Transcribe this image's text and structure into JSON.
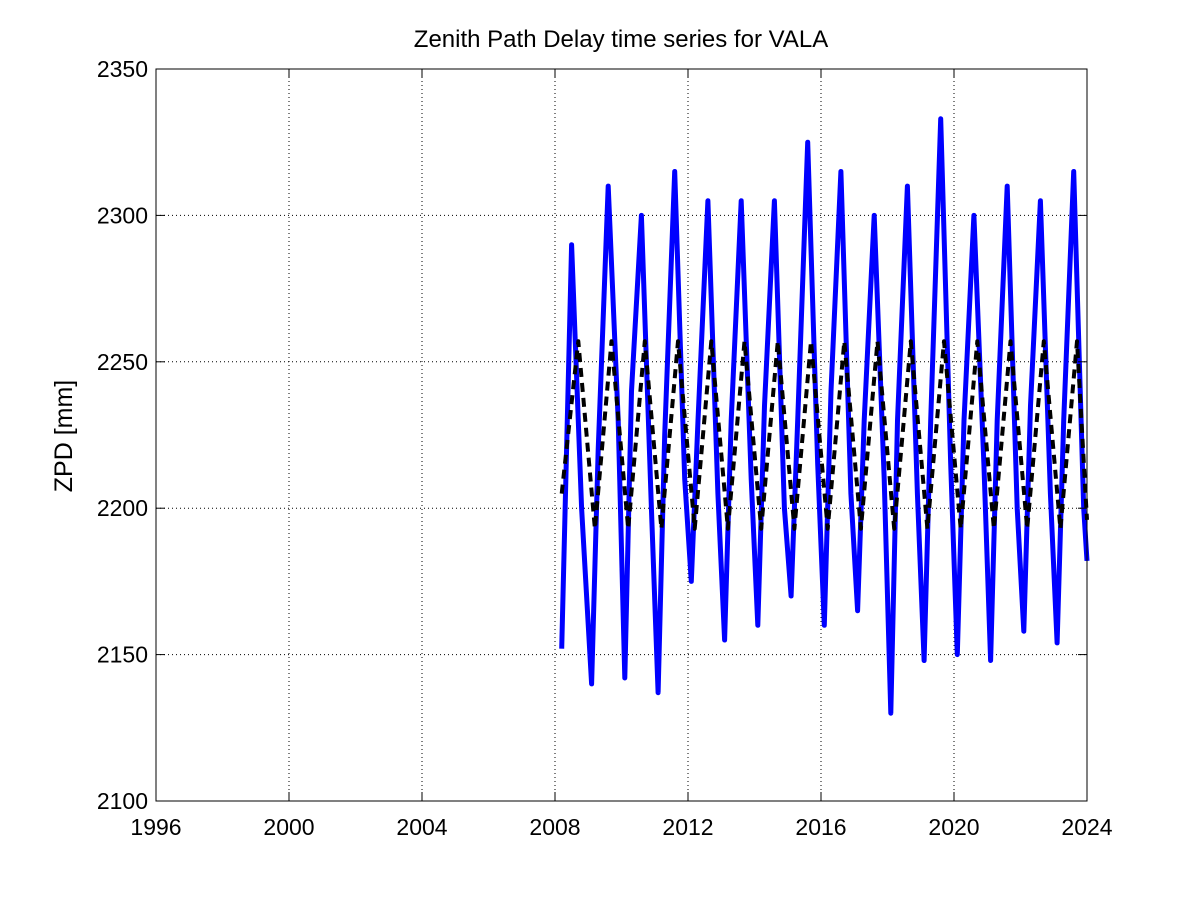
{
  "chart_data": {
    "type": "line",
    "title": "Zenith Path Delay time series for VALA",
    "xlabel": "",
    "ylabel": "ZPD [mm]",
    "xlim": [
      1996,
      2024
    ],
    "ylim": [
      2100,
      2350
    ],
    "x_ticks": [
      1996,
      2000,
      2004,
      2008,
      2012,
      2016,
      2020,
      2024
    ],
    "y_ticks": [
      2100,
      2150,
      2200,
      2250,
      2300,
      2350
    ],
    "grid": true,
    "grid_style": "dotted",
    "colors": {
      "observed": "#0000ff",
      "model": "#000000"
    },
    "series": [
      {
        "style": "solid",
        "color": "#0000ff",
        "x": [
          2008.2,
          2008.5,
          2008.8,
          2009.1,
          2009.3,
          2009.6,
          2009.9,
          2010.1,
          2010.3,
          2010.6,
          2010.9,
          2011.1,
          2011.3,
          2011.6,
          2011.9,
          2012.1,
          2012.3,
          2012.6,
          2012.9,
          2013.1,
          2013.3,
          2013.6,
          2013.9,
          2014.1,
          2014.3,
          2014.6,
          2014.9,
          2015.1,
          2015.3,
          2015.6,
          2015.9,
          2016.1,
          2016.3,
          2016.6,
          2016.9,
          2017.1,
          2017.3,
          2017.6,
          2017.9,
          2018.1,
          2018.3,
          2018.6,
          2018.9,
          2019.1,
          2019.3,
          2019.6,
          2019.9,
          2020.1,
          2020.3,
          2020.6,
          2020.9,
          2021.1,
          2021.3,
          2021.6,
          2021.9,
          2022.1,
          2022.3,
          2022.6,
          2022.9,
          2023.1,
          2023.3,
          2023.6,
          2023.9,
          2024.0
        ],
        "y": [
          2152,
          2290,
          2200,
          2140,
          2220,
          2310,
          2230,
          2142,
          2240,
          2300,
          2200,
          2137,
          2225,
          2315,
          2210,
          2175,
          2230,
          2305,
          2205,
          2155,
          2230,
          2305,
          2210,
          2160,
          2235,
          2305,
          2200,
          2170,
          2230,
          2325,
          2215,
          2160,
          2240,
          2315,
          2205,
          2165,
          2230,
          2300,
          2210,
          2130,
          2230,
          2310,
          2205,
          2148,
          2230,
          2333,
          2215,
          2150,
          2230,
          2300,
          2215,
          2148,
          2230,
          2310,
          2200,
          2158,
          2235,
          2305,
          2205,
          2154,
          2230,
          2315,
          2200,
          2182
        ]
      },
      {
        "style": "dashed",
        "color": "#000000",
        "x": [
          2008.2,
          2008.7,
          2009.2,
          2009.7,
          2010.2,
          2010.7,
          2011.2,
          2011.7,
          2012.2,
          2012.7,
          2013.2,
          2013.7,
          2014.2,
          2014.7,
          2015.2,
          2015.7,
          2016.2,
          2016.7,
          2017.2,
          2017.7,
          2018.2,
          2018.7,
          2019.2,
          2019.7,
          2020.2,
          2020.7,
          2021.2,
          2021.7,
          2022.2,
          2022.7,
          2023.2,
          2023.7,
          2024.0
        ],
        "y": [
          2205,
          2257,
          2193,
          2257,
          2193,
          2257,
          2193,
          2257,
          2193,
          2257,
          2193,
          2257,
          2193,
          2257,
          2193,
          2257,
          2193,
          2257,
          2193,
          2257,
          2193,
          2257,
          2193,
          2257,
          2193,
          2257,
          2193,
          2257,
          2193,
          2257,
          2193,
          2257,
          2196
        ]
      }
    ]
  }
}
